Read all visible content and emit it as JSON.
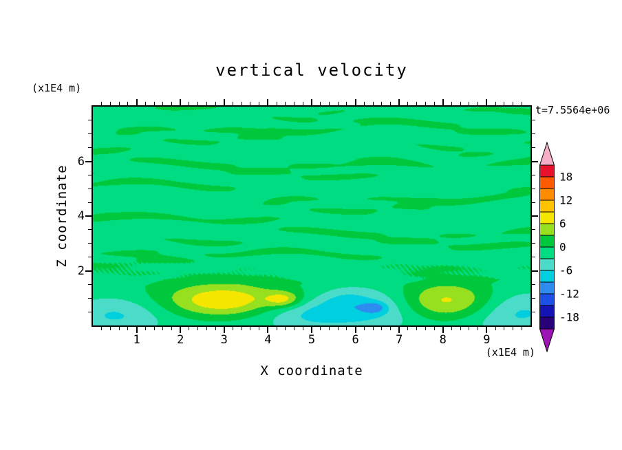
{
  "title": "vertical velocity",
  "annotations": {
    "time_label": "t=7.5564e+06",
    "top_left_unit": "(x1E4 m)",
    "bottom_right_unit": "(x1E4 m)"
  },
  "axes": {
    "x": {
      "label": "X coordinate",
      "min": 0,
      "max": 10,
      "major_ticks": [
        1,
        2,
        3,
        4,
        5,
        6,
        7,
        8,
        9
      ],
      "minor_step": 0.2
    },
    "z": {
      "label": "Z coordinate",
      "min": 0,
      "max": 8,
      "major_ticks": [
        2,
        4,
        6
      ],
      "minor_step": 0.5
    }
  },
  "colorbar": {
    "vmin": -21,
    "vmax": 21,
    "interval": 3,
    "label_values": [
      "18",
      "12",
      "6",
      "0",
      "-6",
      "-12",
      "-18"
    ],
    "band_colors": [
      "#9C14B4",
      "#28007A",
      "#1414B4",
      "#1E50E8",
      "#2E8CF0",
      "#00CFE0",
      "#4ADCC8",
      "#00DC82",
      "#00C83C",
      "#96E020",
      "#F5E600",
      "#FFC300",
      "#FF8C00",
      "#FF5A00",
      "#E8112D",
      "#F4AEC8"
    ]
  },
  "chart_data": {
    "type": "heatmap",
    "title": "vertical velocity",
    "xlabel": "X coordinate",
    "ylabel": "Z coordinate",
    "units": "x1E4 m",
    "time": "t=7.5564e+06",
    "x_range": [
      0,
      10
    ],
    "z_range": [
      0,
      8
    ],
    "contour_interval": 3,
    "value_range": [
      -21,
      21
    ],
    "base_value": -0.85,
    "noise": {
      "streak_zmin": 1.45,
      "streak_zramp": 0.6,
      "terms": [
        {
          "amp": 0.95,
          "zf": 5.2,
          "xwarp": 2.2,
          "xf": 0.65,
          "zf2": 0.9,
          "xdrift": 0.25,
          "phase": 0.7
        },
        {
          "amp": 0.7,
          "zf": 9.7,
          "xwarp": 1.8,
          "xf": 1.35,
          "zf2": -0.6,
          "xdrift": -0.2,
          "phase": 2.1
        },
        {
          "amp": 0.45,
          "zf": 15.3,
          "xwarp": 1.4,
          "xf": 2.2,
          "zf2": 0.4,
          "xdrift": 0.35,
          "phase": 4.0
        }
      ],
      "chaos": {
        "amp": 0.65,
        "xf": 55,
        "zf": 30,
        "z0": 2.05,
        "sz": 0.16
      }
    },
    "blobs": [
      {
        "x": 5.0,
        "z": 0.2,
        "sx": 4.8,
        "sz": 0.5,
        "amp": -2.0
      },
      {
        "x": 0.55,
        "z": 0.45,
        "sx": 0.75,
        "sz": 0.5,
        "amp": -5.0
      },
      {
        "x": 2.7,
        "z": 0.85,
        "sx": 1.6,
        "sz": 0.6,
        "amp": 2.6
      },
      {
        "x": 3.0,
        "z": 0.9,
        "sx": 0.85,
        "sz": 0.42,
        "amp": 7.6
      },
      {
        "x": 4.35,
        "z": 0.95,
        "sx": 0.28,
        "sz": 0.2,
        "amp": 6.5
      },
      {
        "x": 5.05,
        "z": 0.45,
        "sx": 0.8,
        "sz": 0.38,
        "amp": -4.6
      },
      {
        "x": 5.75,
        "z": 0.95,
        "sx": 0.4,
        "sz": 0.3,
        "amp": -2.8
      },
      {
        "x": 6.55,
        "z": 0.75,
        "sx": 0.8,
        "sz": 0.5,
        "amp": -5.0
      },
      {
        "x": 6.45,
        "z": 0.65,
        "sx": 0.2,
        "sz": 0.15,
        "amp": -4.8
      },
      {
        "x": 8.05,
        "z": 0.85,
        "sx": 0.85,
        "sz": 0.5,
        "amp": 9.0
      },
      {
        "x": 9.65,
        "z": 0.55,
        "sx": 0.8,
        "sz": 0.55,
        "amp": -5.2
      }
    ]
  }
}
